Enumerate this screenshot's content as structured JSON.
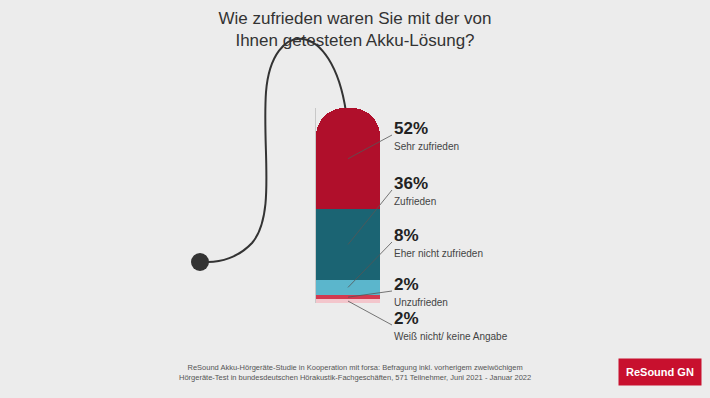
{
  "chart_data": {
    "type": "bar",
    "title": "Wie zufrieden waren Sie mit der von\nIhnen getesteten Akku-Lösung?",
    "categories": [
      null
    ],
    "series": [
      {
        "name": "Sehr zufrieden",
        "color": "#b00f2b",
        "values": [
          52
        ],
        "value_labels": [
          "52%"
        ]
      },
      {
        "name": "Zufrieden",
        "color": "#1b6473",
        "values": [
          36
        ],
        "value_labels": [
          "36%"
        ]
      },
      {
        "name": "Eher nicht zufrieden",
        "color": "#5bb6cc",
        "values": [
          8
        ],
        "value_labels": [
          "8%"
        ]
      },
      {
        "name": "Unzufrieden",
        "color": "#d23a50",
        "values": [
          2
        ],
        "value_labels": [
          "2%"
        ]
      },
      {
        "name": "Weiß nicht/ keine Angabe",
        "color": "#f3c6cc",
        "values": [
          2
        ],
        "value_labels": [
          "2%"
        ]
      }
    ],
    "stacked": true,
    "data_labels": true,
    "tick_labels": false,
    "grid": false,
    "ylim": [
      0,
      100
    ],
    "yticks": [],
    "source": "ReSound Akku-Hörgeräte-Studie in Kooperation mit forsa: Befragung inkl. vorherigem zweiwöchigem\nHörgeräte-Test in bundesdeutschen Hörakustik-Fachgeschäften, 571 Teilnehmer, Juni 2021 - Januar 2022",
    "logo": "ReSound GN"
  }
}
